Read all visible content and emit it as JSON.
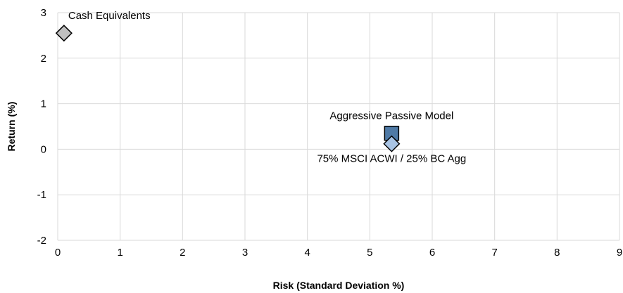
{
  "chart_data": {
    "type": "scatter",
    "xlabel": "Risk (Standard Deviation %)",
    "ylabel": "Return (%)",
    "xlim": [
      0,
      9
    ],
    "ylim": [
      -2,
      3
    ],
    "x_ticks": [
      "0",
      "1",
      "2",
      "3",
      "4",
      "5",
      "6",
      "7",
      "8",
      "9"
    ],
    "y_ticks": [
      "3",
      "2",
      "1",
      "0",
      "-1",
      "-2"
    ],
    "grid": true,
    "points": [
      {
        "label": "Cash Equivalents",
        "x": 0.1,
        "y": 2.55,
        "marker": "diamond",
        "color": "#bfbfbf",
        "label_position": "above-right"
      },
      {
        "label": "Aggressive Passive Model",
        "x": 5.35,
        "y": 0.35,
        "marker": "square",
        "color": "#4f7aa6",
        "label_position": "above"
      },
      {
        "label": "75% MSCI ACWI / 25% BC Agg",
        "x": 5.35,
        "y": 0.12,
        "marker": "diamond",
        "color": "#a9c4e4",
        "label_position": "below"
      }
    ]
  }
}
